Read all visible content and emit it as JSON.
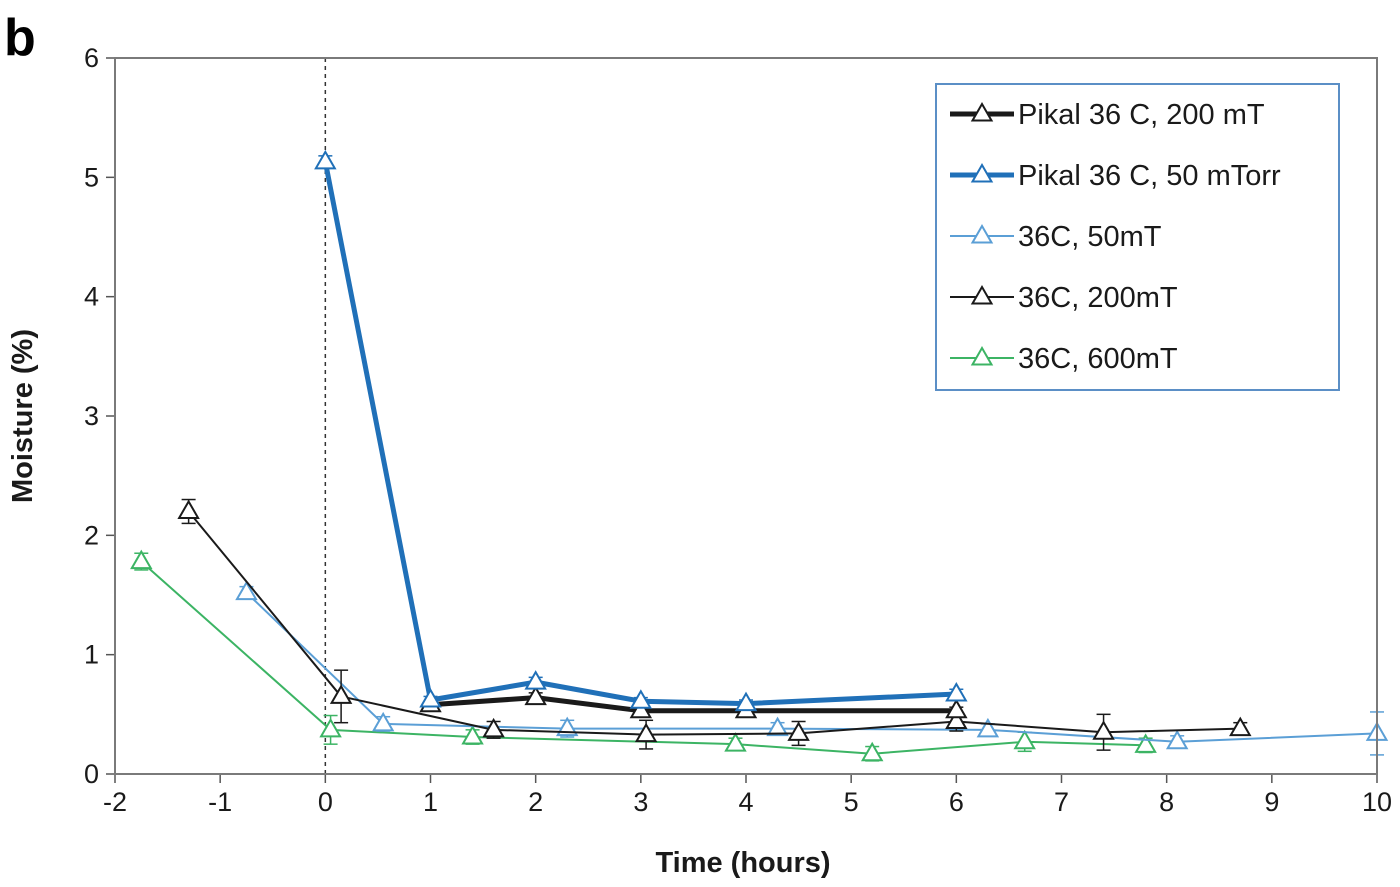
{
  "panel_label": "b",
  "chart_data": {
    "type": "line",
    "xlabel": "Time (hours)",
    "ylabel": "Moisture (%)",
    "xlim": [
      -2,
      10
    ],
    "ylim": [
      0,
      6
    ],
    "xticks": [
      "-2",
      "-1",
      "0",
      "1",
      "2",
      "3",
      "4",
      "5",
      "6",
      "7",
      "8",
      "9",
      "10"
    ],
    "yticks": [
      "0",
      "1",
      "2",
      "3",
      "4",
      "5",
      "6"
    ],
    "grid": false,
    "legend_position": "top-right",
    "reference_line_x": 0,
    "series": [
      {
        "name": "Pikal 36 C, 200 mT",
        "color": "#1a1a1a",
        "line_style": "thick",
        "x": [
          1,
          2,
          3,
          4,
          6
        ],
        "y": [
          0.58,
          0.64,
          0.53,
          0.53,
          0.53
        ],
        "err": [
          0.03,
          0.04,
          0.03,
          0.03,
          0.03
        ]
      },
      {
        "name": "Pikal 36 C, 50 mTorr",
        "color": "#2070b8",
        "line_style": "thick",
        "x": [
          0,
          1,
          2,
          3,
          4,
          6
        ],
        "y": [
          5.13,
          0.62,
          0.77,
          0.61,
          0.59,
          0.67
        ],
        "err": [
          0.05,
          0.03,
          0.04,
          0.03,
          0.03,
          0.04
        ]
      },
      {
        "name": "36C, 50mT",
        "color": "#5b9fd6",
        "line_style": "thin",
        "x": [
          -0.75,
          0.55,
          2.3,
          4.3,
          6.3,
          8.1,
          10
        ],
        "y": [
          1.52,
          0.42,
          0.38,
          0.38,
          0.37,
          0.27,
          0.34
        ],
        "err": [
          0.05,
          0.06,
          0.07,
          0.05,
          0.05,
          0.05,
          0.18
        ]
      },
      {
        "name": "36C, 200mT",
        "color": "#1a1a1a",
        "line_style": "thin",
        "x": [
          -1.3,
          0.15,
          1.6,
          3.05,
          4.5,
          6,
          7.4,
          8.7
        ],
        "y": [
          2.2,
          0.65,
          0.37,
          0.33,
          0.34,
          0.44,
          0.35,
          0.38
        ],
        "err": [
          0.1,
          0.22,
          0.07,
          0.12,
          0.1,
          0.08,
          0.15,
          0.05
        ]
      },
      {
        "name": "36C, 600mT",
        "color": "#3cb464",
        "line_style": "thin",
        "x": [
          -1.75,
          0.05,
          1.4,
          3.9,
          5.2,
          6.65,
          7.8
        ],
        "y": [
          1.78,
          0.37,
          0.31,
          0.25,
          0.17,
          0.27,
          0.24
        ],
        "err": [
          0.07,
          0.12,
          0.06,
          0.05,
          0.06,
          0.08,
          0.06
        ]
      }
    ]
  }
}
